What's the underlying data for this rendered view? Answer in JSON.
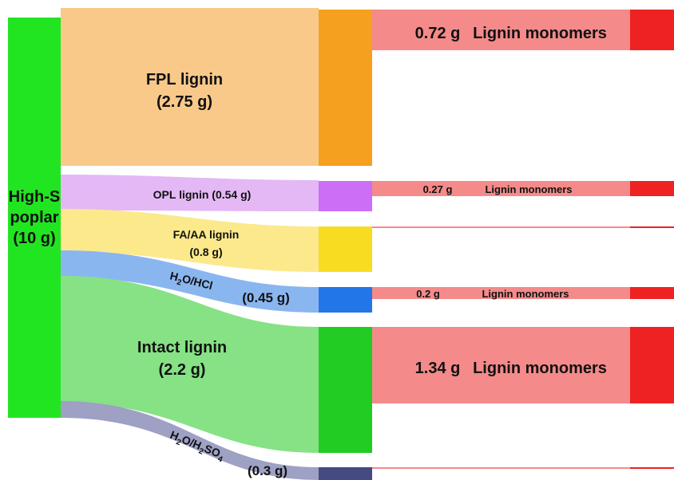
{
  "source": {
    "label_line1": "High-S",
    "label_line2": "poplar",
    "label_line3": "(10 g)",
    "color": "#22e522"
  },
  "flows": [
    {
      "id": "fpl",
      "label_line1": "FPL lignin",
      "label_line2": "(2.75 g)",
      "value_g": 2.75,
      "band_color": "#f9c98a",
      "node_color": "#f6a020"
    },
    {
      "id": "opl",
      "label_line1": "OPL lignin (0.54 g)",
      "value_g": 0.54,
      "band_color": "#e3b8f5",
      "node_color": "#cc6ef6"
    },
    {
      "id": "faaa",
      "label_line1": "FA/AA lignin",
      "label_line2": "(0.8 g)",
      "value_g": 0.8,
      "band_color": "#fbe98c",
      "node_color": "#f8dc22"
    },
    {
      "id": "hcl",
      "label_main": "H",
      "label_sub": "2",
      "label_rest": "O/HCl",
      "label_value": "(0.45 g)",
      "value_g": 0.45,
      "band_color": "#8ab6f0",
      "node_color": "#2276e8"
    },
    {
      "id": "intact",
      "label_line1": "Intact lignin",
      "label_line2": "(2.2 g)",
      "value_g": 2.2,
      "band_color": "#86e284",
      "node_color": "#22cc22"
    },
    {
      "id": "h2so4",
      "label_main": "H",
      "label_sub": "2",
      "label_rest": "O/H",
      "label_sub2": "2",
      "label_rest2": "SO",
      "label_sub3": "4",
      "label_value": "(0.3 g)",
      "value_g": 0.3,
      "band_color": "#9ea0c4",
      "node_color": "#454a80"
    }
  ],
  "monomers": [
    {
      "id": "m1",
      "value_label": "0.72 g",
      "name_label": "Lignin monomers",
      "value_g": 0.72
    },
    {
      "id": "m2",
      "value_label": "0.27 g",
      "name_label": "Lignin monomers",
      "value_g": 0.27
    },
    {
      "id": "m3",
      "value_label": "",
      "name_label": "",
      "value_g": 0
    },
    {
      "id": "m4",
      "value_label": "0.2 g",
      "name_label": "Lignin monomers",
      "value_g": 0.2
    },
    {
      "id": "m5",
      "value_label": "1.34 g",
      "name_label": "Lignin monomers",
      "value_g": 1.34
    },
    {
      "id": "m6",
      "value_label": "",
      "name_label": "",
      "value_g": 0
    }
  ],
  "monomer_band_color": "#f48a8a",
  "monomer_node_color": "#ee2222"
}
